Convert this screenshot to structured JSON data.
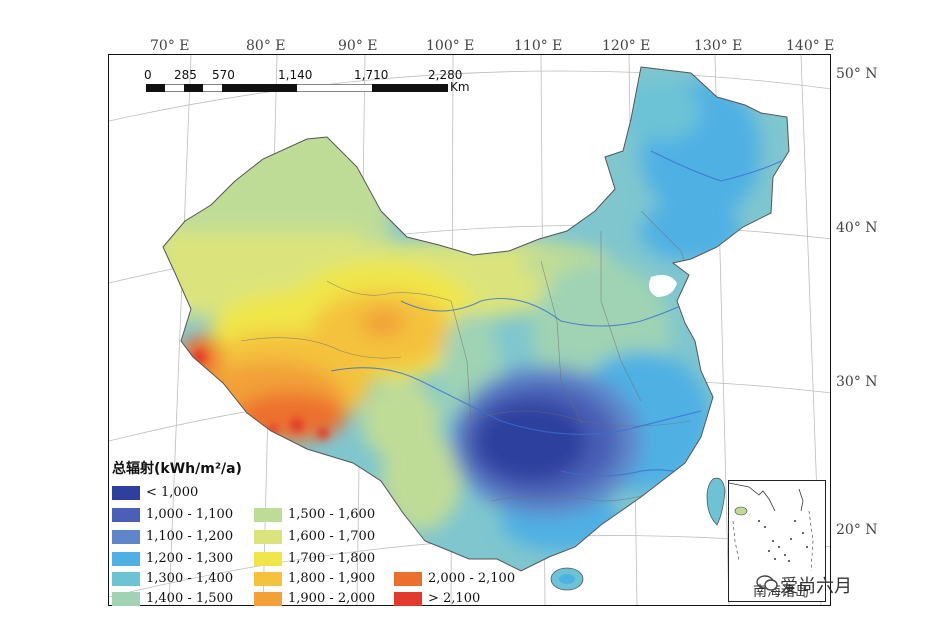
{
  "longitude_labels": [
    {
      "text": "70°  E"
    },
    {
      "text": "80°  E"
    },
    {
      "text": "90°  E"
    },
    {
      "text": "100°  E"
    },
    {
      "text": "110°  E"
    },
    {
      "text": "120°  E"
    },
    {
      "text": "130°  E"
    },
    {
      "text": "140°  E"
    }
  ],
  "latitude_labels": [
    {
      "text": "50°  N"
    },
    {
      "text": "40°  N"
    },
    {
      "text": "30°  N"
    },
    {
      "text": "20°  N"
    }
  ],
  "scale_bar": {
    "ticks": [
      "0",
      "285",
      "570",
      "1,140",
      "1,710",
      "2,280"
    ],
    "unit": "Km"
  },
  "legend": {
    "title": "总辐射(kWh/m²/a)",
    "items": [
      {
        "label": "<  1,000",
        "color": "#2f3f9e"
      },
      {
        "label": "1,000  -  1,100",
        "color": "#4a5fb6"
      },
      {
        "label": "1,100  -  1,200",
        "color": "#5f86c9"
      },
      {
        "label": "1,200  -  1,300",
        "color": "#4fb0e4"
      },
      {
        "label": "1,300  -  1,400",
        "color": "#6cc3d6"
      },
      {
        "label": "1,400  -  1,500",
        "color": "#9fd3b4"
      },
      {
        "label": "1,500  -  1,600",
        "color": "#bfdc97"
      },
      {
        "label": "1,600  -  1,700",
        "color": "#dbe47c"
      },
      {
        "label": "1,700  -  1,800",
        "color": "#f0e64a"
      },
      {
        "label": "1,800  -  1,900",
        "color": "#f4c23c"
      },
      {
        "label": "1,900  -  2,000",
        "color": "#f2a038"
      },
      {
        "label": "2,000  -  2,100",
        "color": "#ec6f2e"
      },
      {
        "label": ">  2,100",
        "color": "#e23a2c"
      }
    ]
  },
  "inset_label": "南海诸岛",
  "watermark": "爱尚六月"
}
